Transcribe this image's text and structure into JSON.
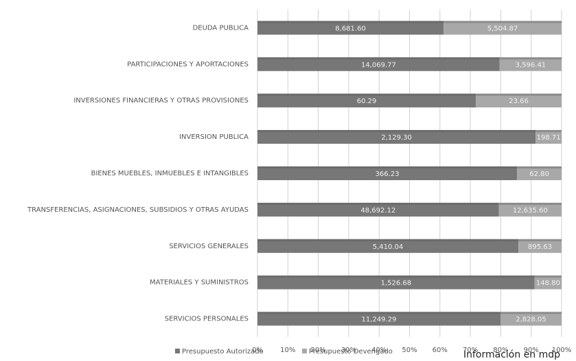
{
  "chart_data": {
    "type": "bar",
    "stacked": "percent",
    "orientation": "horizontal",
    "categories": [
      "DEUDA PUBLICA",
      "PARTICIPACIONES Y APORTACIONES",
      "INVERSIONES FINANCIERAS Y OTRAS PROVISIONES",
      "INVERSION PUBLICA",
      "BIENES MUEBLES, INMUEBLES E INTANGIBLES",
      "TRANSFERENCIAS, ASIGNACIONES, SUBSIDIOS Y OTRAS AYUDAS",
      "SERVICIOS GENERALES",
      "MATERIALES Y SUMINISTROS",
      "SERVICIOS PERSONALES"
    ],
    "series": [
      {
        "name": "Presupuesto Autorizado",
        "color": "#777777",
        "values": [
          8681.6,
          14069.77,
          60.29,
          2129.3,
          366.23,
          48692.12,
          5410.04,
          1526.68,
          11249.29
        ],
        "value_labels": [
          "8,681.60",
          "14,069.77",
          "60.29",
          "2,129.30",
          "366.23",
          "48,692.12",
          "5,410.04",
          "1,526.68",
          "11,249.29"
        ]
      },
      {
        "name": "Presupuesto Devengado",
        "color": "#a8a8a8",
        "values": [
          5504.87,
          3596.41,
          23.66,
          198.71,
          62.8,
          12635.6,
          895.63,
          148.8,
          2828.05
        ],
        "value_labels": [
          "5,504.87",
          "3,596.41",
          "23.66",
          "198.71",
          "62.80",
          "12,635.60",
          "895.63",
          "148.80",
          "2,828.05"
        ]
      }
    ],
    "xlim": [
      0,
      100
    ],
    "xticks": [
      {
        "value": 0,
        "label": "0%"
      },
      {
        "value": 10,
        "label": "10%"
      },
      {
        "value": 20,
        "label": "20%"
      },
      {
        "value": 30,
        "label": "30%"
      },
      {
        "value": 40,
        "label": "40%"
      },
      {
        "value": 50,
        "label": "50%"
      },
      {
        "value": 60,
        "label": "60%"
      },
      {
        "value": 70,
        "label": "70%"
      },
      {
        "value": 80,
        "label": "80%"
      },
      {
        "value": 90,
        "label": "90%"
      },
      {
        "value": 100,
        "label": "100%"
      }
    ],
    "grid": true,
    "annotation": "Información en mdp"
  }
}
